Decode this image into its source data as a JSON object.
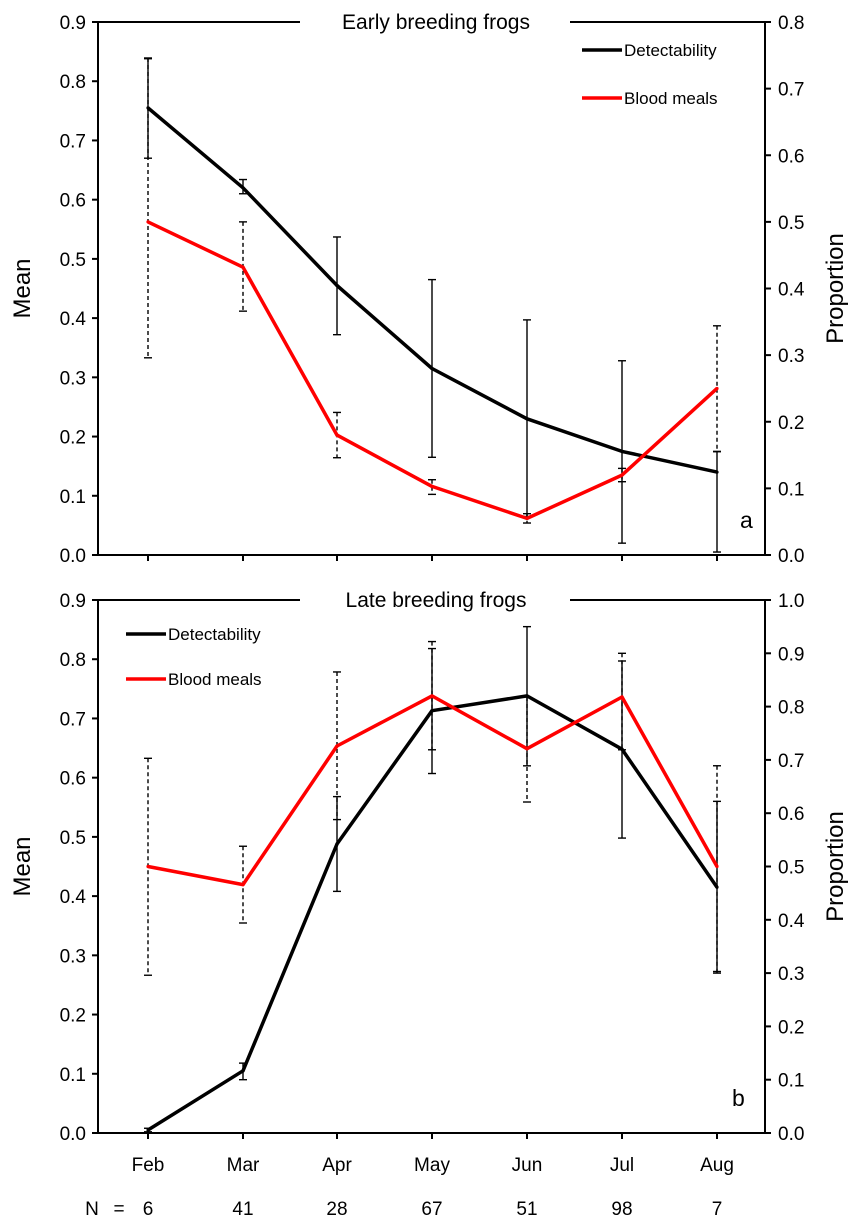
{
  "chart_data": [
    {
      "type": "line",
      "title": "Early breeding frogs",
      "panel_letter": "a",
      "categories": [
        "Feb",
        "Mar",
        "Apr",
        "May",
        "Jun",
        "Jul",
        "Aug"
      ],
      "ylabel": "Mean",
      "ylabel_right": "Proportion",
      "ylim": [
        0,
        0.9
      ],
      "ylim_right": [
        0,
        0.8
      ],
      "yticks": [
        "0.0",
        "0.1",
        "0.2",
        "0.3",
        "0.4",
        "0.5",
        "0.6",
        "0.7",
        "0.8",
        "0.9"
      ],
      "yticks_right": [
        "0.0",
        "0.1",
        "0.2",
        "0.3",
        "0.4",
        "0.5",
        "0.6",
        "0.7",
        "0.8"
      ],
      "legend_position": "top-right",
      "grid": false,
      "series": [
        {
          "name": "Detectability",
          "axis": "left",
          "color": "#000000",
          "errorbar_style": "solid",
          "values": [
            0.755,
            0.62,
            0.455,
            0.315,
            0.23,
            0.175,
            0.14
          ],
          "err_low": [
            0.67,
            0.61,
            0.372,
            0.165,
            0.065,
            0.02,
            0.005
          ],
          "err_high": [
            0.838,
            0.634,
            0.537,
            0.465,
            0.397,
            0.328,
            0.175
          ]
        },
        {
          "name": "Blood meals",
          "axis": "right",
          "color": "#ff0000",
          "errorbar_style": "dashed",
          "values": [
            0.5,
            0.432,
            0.18,
            0.103,
            0.055,
            0.12,
            0.25
          ],
          "err_low": [
            0.296,
            0.366,
            0.146,
            0.091,
            0.048,
            0.11,
            0.155
          ],
          "err_high": [
            0.746,
            0.5,
            0.214,
            0.113,
            0.062,
            0.13,
            0.344
          ]
        }
      ]
    },
    {
      "type": "line",
      "title": "Late breeding frogs",
      "panel_letter": "b",
      "categories": [
        "Feb",
        "Mar",
        "Apr",
        "May",
        "Jun",
        "Jul",
        "Aug"
      ],
      "ylabel": "Mean",
      "ylabel_right": "Proportion",
      "ylim": [
        0,
        0.9
      ],
      "ylim_right": [
        0,
        1.0
      ],
      "yticks": [
        "0.0",
        "0.1",
        "0.2",
        "0.3",
        "0.4",
        "0.5",
        "0.6",
        "0.7",
        "0.8",
        "0.9"
      ],
      "yticks_right": [
        "0.0",
        "0.1",
        "0.2",
        "0.3",
        "0.4",
        "0.5",
        "0.6",
        "0.7",
        "0.8",
        "0.9",
        "1.0"
      ],
      "legend_position": "top-left",
      "grid": false,
      "series": [
        {
          "name": "Detectability",
          "axis": "left",
          "color": "#000000",
          "errorbar_style": "solid",
          "values": [
            0.005,
            0.105,
            0.488,
            0.713,
            0.738,
            0.648,
            0.415
          ],
          "err_low": [
            0.002,
            0.09,
            0.408,
            0.607,
            0.62,
            0.498,
            0.27
          ],
          "err_high": [
            0.008,
            0.118,
            0.568,
            0.818,
            0.855,
            0.797,
            0.56
          ]
        },
        {
          "name": "Blood meals",
          "axis": "right",
          "color": "#ff0000",
          "errorbar_style": "dashed",
          "values": [
            0.5,
            0.466,
            0.726,
            0.82,
            0.721,
            0.818,
            0.5
          ],
          "err_low": [
            0.296,
            0.394,
            0.588,
            0.719,
            0.621,
            0.719,
            0.303
          ],
          "err_high": [
            0.703,
            0.538,
            0.865,
            0.922,
            0.818,
            0.9,
            0.689
          ]
        }
      ]
    }
  ],
  "sample_sizes": {
    "label": "N",
    "equals": "=",
    "values": [
      "6",
      "41",
      "28",
      "67",
      "51",
      "98",
      "7"
    ]
  }
}
